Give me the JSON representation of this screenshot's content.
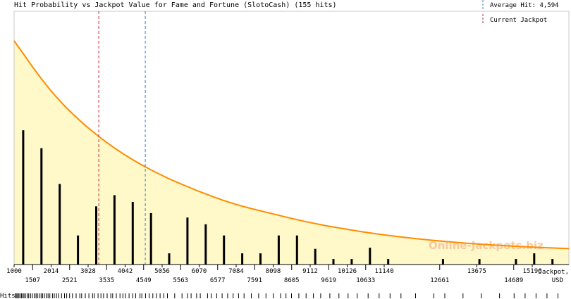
{
  "chart_data": {
    "type": "bar",
    "title": "Hit Probability vs Jackpot Value for Fame and Fortune (SlotoCash) (155 hits)",
    "xlabel": "Jackpot, USD",
    "xlabel_line1": "Jackpot,",
    "xlabel_line2": "USD",
    "hits_label": "Hits",
    "watermark": "Online-Jackpots.biz",
    "xlim": [
      1000,
      16200
    ],
    "ylim": [
      0,
      100
    ],
    "ticks_upper": [
      1000,
      2014,
      3028,
      4042,
      5056,
      6070,
      7084,
      8098,
      9112,
      10126,
      11140,
      13675,
      15196
    ],
    "ticks_lower": [
      1507,
      2521,
      3535,
      4549,
      5563,
      6577,
      7591,
      8605,
      9619,
      10633,
      12661,
      14689
    ],
    "bars": {
      "x": [
        1250,
        1750,
        2250,
        2750,
        3250,
        3750,
        4250,
        4750,
        5250,
        5750,
        6250,
        6750,
        7250,
        7750,
        8250,
        8750,
        9250,
        9750,
        10250,
        10750,
        11250,
        12750,
        13750,
        14750,
        15250,
        15750
      ],
      "values": [
        60,
        52,
        36,
        13,
        26,
        31,
        28,
        23,
        5,
        21,
        18,
        13,
        5,
        5,
        13,
        13,
        7,
        2.5,
        2.5,
        7.5,
        2.5,
        2.5,
        2.5,
        2.5,
        5,
        2.5
      ]
    },
    "curve": {
      "x": [
        1000,
        2000,
        3000,
        4000,
        5000,
        6000,
        7000,
        8000,
        9000,
        10000,
        11000,
        12000,
        13000,
        14000,
        15000,
        16200
      ],
      "y": [
        100,
        77,
        61,
        49,
        40,
        33,
        27,
        23,
        19,
        16,
        13.5,
        11.5,
        10,
        8.8,
        7.9,
        7.1
      ]
    },
    "average_hit": {
      "label": "Average Hit: 4,594",
      "value": 4594,
      "color": "#3b7fd0"
    },
    "current_jackpot": {
      "label": "Current Jackpot",
      "value": 3320,
      "color": "#c0283a"
    },
    "colors": {
      "curve": "#ff8c00",
      "fill": "#fff8c8",
      "bar": "#000000"
    },
    "hits_rug": [
      1040,
      1060,
      1090,
      1130,
      1160,
      1200,
      1240,
      1270,
      1310,
      1360,
      1400,
      1450,
      1500,
      1550,
      1600,
      1640,
      1690,
      1740,
      1780,
      1830,
      1880,
      1930,
      1980,
      2050,
      2100,
      2160,
      2220,
      2300,
      2380,
      2440,
      2520,
      2600,
      2700,
      2800,
      2850,
      2950,
      3050,
      3150,
      3200,
      3300,
      3380,
      3450,
      3550,
      3650,
      3700,
      3800,
      3900,
      3980,
      4050,
      4150,
      4250,
      4330,
      4450,
      4500,
      4600,
      4700,
      4800,
      4900,
      5000,
      5100,
      5200,
      5400,
      5600,
      5750,
      5850,
      6000,
      6100,
      6300,
      6400,
      6550,
      6700,
      6850,
      7000,
      7150,
      7300,
      7500,
      7700,
      7900,
      8100,
      8300,
      8450,
      8600,
      8800,
      9000,
      9200,
      9400,
      9650,
      9900,
      10150,
      10400,
      10700,
      11000,
      11300,
      11600,
      12000,
      12500,
      12800,
      13300,
      13800,
      14300,
      14700,
      15000,
      15300,
      15600,
      15900
    ]
  }
}
